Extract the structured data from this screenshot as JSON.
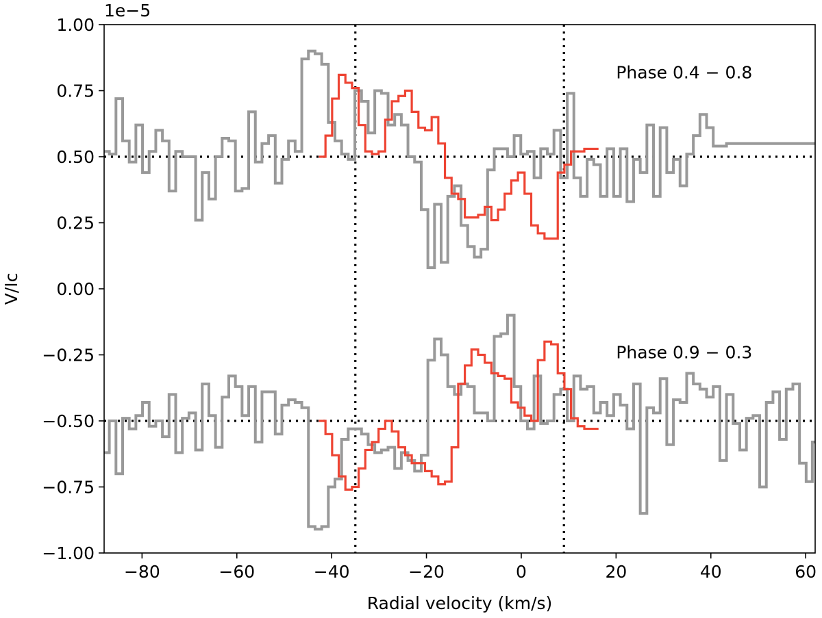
{
  "chart_data": {
    "type": "line",
    "step": true,
    "xlabel": "Radial velocity (km/s)",
    "ylabel": "V/Ic",
    "xlim": [
      -88,
      62
    ],
    "ylim": [
      -1e-05,
      1e-05
    ],
    "y_scale_label": "1e−5",
    "xticks": [
      -80,
      -60,
      -40,
      -20,
      0,
      20,
      40,
      60
    ],
    "xtick_labels": [
      "−80",
      "−60",
      "−40",
      "−20",
      "0",
      "20",
      "40",
      "60"
    ],
    "yticks": [
      -1.0,
      -0.75,
      -0.5,
      -0.25,
      0.0,
      0.25,
      0.5,
      0.75,
      1.0
    ],
    "ytick_labels": [
      "−1.00",
      "−0.75",
      "−0.50",
      "−0.25",
      "0.00",
      "0.25",
      "0.50",
      "0.75",
      "1.00"
    ],
    "y_multiplier": 1e-05,
    "reference_lines": {
      "vertical_x": [
        -35,
        9
      ],
      "horizontal_y": [
        0.5,
        -0.5
      ]
    },
    "annotations": [
      {
        "text": "Phase 0.4 − 0.8",
        "x": 20,
        "y": 0.82
      },
      {
        "text": "Phase 0.9 − 0.3",
        "x": 20,
        "y": -0.24
      }
    ],
    "series": [
      {
        "name": "upper-observed",
        "color": "#999999",
        "x": [
          -87.6,
          -86.2,
          -84.8,
          -83.4,
          -82.0,
          -80.6,
          -79.2,
          -77.8,
          -76.4,
          -75.0,
          -73.6,
          -72.2,
          -70.8,
          -69.4,
          -68.0,
          -66.6,
          -65.2,
          -63.8,
          -62.4,
          -61.0,
          -59.6,
          -58.2,
          -56.8,
          -55.4,
          -54.0,
          -52.6,
          -51.2,
          -49.8,
          -48.4,
          -47.0,
          -45.6,
          -44.2,
          -42.8,
          -41.4,
          -40.0,
          -38.6,
          -37.2,
          -35.8,
          -34.4,
          -33.0,
          -31.6,
          -30.2,
          -28.8,
          -27.4,
          -26.0,
          -24.6,
          -23.2,
          -21.8,
          -20.4,
          -19.0,
          -17.6,
          -16.2,
          -14.8,
          -13.4,
          -12.0,
          -10.6,
          -9.2,
          -7.8,
          -6.4,
          -5.0,
          -3.6,
          -2.2,
          -0.8,
          0.6,
          2.0,
          3.4,
          4.8,
          6.2,
          7.6,
          9.0,
          10.4,
          11.8,
          13.2,
          14.6,
          16.0,
          17.4,
          18.8,
          20.2,
          21.6,
          23.0,
          24.4,
          25.8,
          27.2,
          28.6,
          30.0,
          31.4,
          32.8,
          34.2,
          35.6,
          37.0,
          38.4,
          39.8,
          41.2,
          42.6,
          44.0,
          45.4,
          46.8,
          48.2,
          49.6,
          51.0,
          52.4,
          53.8,
          55.2,
          56.6,
          58.0,
          59.4,
          60.8,
          62.0
        ],
        "y": [
          0.52,
          0.51,
          0.72,
          0.56,
          0.48,
          0.62,
          0.44,
          0.52,
          0.6,
          0.56,
          0.37,
          0.52,
          0.5,
          0.5,
          0.26,
          0.44,
          0.34,
          0.5,
          0.57,
          0.56,
          0.37,
          0.38,
          0.67,
          0.48,
          0.55,
          0.58,
          0.4,
          0.49,
          0.56,
          0.52,
          0.87,
          0.9,
          0.89,
          0.85,
          0.63,
          0.56,
          0.51,
          0.49,
          0.75,
          0.71,
          0.59,
          0.75,
          0.74,
          0.62,
          0.66,
          0.62,
          0.5,
          0.48,
          0.3,
          0.08,
          0.32,
          0.1,
          0.35,
          0.39,
          0.24,
          0.16,
          0.12,
          0.15,
          0.45,
          0.53,
          0.53,
          0.5,
          0.58,
          0.51,
          0.52,
          0.42,
          0.53,
          0.51,
          0.6,
          0.42,
          0.74,
          0.42,
          0.35,
          0.49,
          0.47,
          0.35,
          0.53,
          0.35,
          0.53,
          0.33,
          0.49,
          0.44,
          0.62,
          0.35,
          0.61,
          0.44,
          0.49,
          0.39,
          0.51,
          0.58,
          0.66,
          0.61,
          0.54,
          0.54,
          0.55,
          0.55,
          0.55,
          0.55,
          0.55,
          0.55,
          0.55,
          0.55,
          0.55,
          0.55,
          0.55,
          0.55,
          0.55,
          0.55
        ]
      },
      {
        "name": "upper-model",
        "color": "#ee4433",
        "x": [
          -42.0,
          -40.6,
          -39.2,
          -37.8,
          -36.4,
          -35.0,
          -33.6,
          -32.2,
          -30.8,
          -29.4,
          -28.0,
          -26.6,
          -25.2,
          -23.8,
          -22.4,
          -21.0,
          -19.6,
          -18.2,
          -16.8,
          -15.4,
          -14.0,
          -12.6,
          -11.2,
          -9.8,
          -8.4,
          -7.0,
          -5.6,
          -4.2,
          -2.8,
          -1.4,
          0.0,
          1.4,
          2.8,
          4.2,
          5.6,
          7.0,
          8.4,
          9.8,
          11.2,
          12.6,
          14.0,
          15.4,
          16.0
        ],
        "y": [
          0.5,
          0.58,
          0.72,
          0.81,
          0.78,
          0.76,
          0.62,
          0.52,
          0.51,
          0.52,
          0.64,
          0.71,
          0.73,
          0.75,
          0.67,
          0.61,
          0.6,
          0.65,
          0.55,
          0.42,
          0.36,
          0.34,
          0.27,
          0.27,
          0.28,
          0.31,
          0.26,
          0.3,
          0.36,
          0.41,
          0.44,
          0.36,
          0.24,
          0.21,
          0.19,
          0.19,
          0.44,
          0.47,
          0.52,
          0.52,
          0.53,
          0.53,
          0.53
        ]
      },
      {
        "name": "lower-observed",
        "color": "#999999",
        "x": [
          -87.6,
          -86.2,
          -84.8,
          -83.4,
          -82.0,
          -80.6,
          -79.2,
          -77.8,
          -76.4,
          -75.0,
          -73.6,
          -72.2,
          -70.8,
          -69.4,
          -68.0,
          -66.6,
          -65.2,
          -63.8,
          -62.4,
          -61.0,
          -59.6,
          -58.2,
          -56.8,
          -55.4,
          -54.0,
          -52.6,
          -51.2,
          -49.8,
          -48.4,
          -47.0,
          -45.6,
          -44.2,
          -42.8,
          -41.4,
          -40.0,
          -38.6,
          -37.2,
          -35.8,
          -34.4,
          -33.0,
          -31.6,
          -30.2,
          -28.8,
          -27.4,
          -26.0,
          -24.6,
          -23.2,
          -21.8,
          -20.4,
          -19.0,
          -17.6,
          -16.2,
          -14.8,
          -13.4,
          -12.0,
          -10.6,
          -9.2,
          -7.8,
          -6.4,
          -5.0,
          -3.6,
          -2.2,
          -0.8,
          0.6,
          2.0,
          3.4,
          4.8,
          6.2,
          7.6,
          9.0,
          10.4,
          11.8,
          13.2,
          14.6,
          16.0,
          17.4,
          18.8,
          20.2,
          21.6,
          23.0,
          24.4,
          25.8,
          27.2,
          28.6,
          30.0,
          31.4,
          32.8,
          34.2,
          35.6,
          37.0,
          38.4,
          39.8,
          41.2,
          42.6,
          44.0,
          45.4,
          46.8,
          48.2,
          49.6,
          51.0,
          52.4,
          53.8,
          55.2,
          56.6,
          58.0,
          59.4,
          60.8,
          62.0
        ],
        "y": [
          -0.62,
          -0.5,
          -0.7,
          -0.49,
          -0.53,
          -0.48,
          -0.43,
          -0.52,
          -0.5,
          -0.56,
          -0.4,
          -0.62,
          -0.49,
          -0.47,
          -0.61,
          -0.36,
          -0.48,
          -0.6,
          -0.41,
          -0.33,
          -0.37,
          -0.48,
          -0.37,
          -0.58,
          -0.39,
          -0.39,
          -0.55,
          -0.44,
          -0.42,
          -0.43,
          -0.45,
          -0.9,
          -0.91,
          -0.9,
          -0.75,
          -0.72,
          -0.57,
          -0.53,
          -0.53,
          -0.55,
          -0.59,
          -0.62,
          -0.61,
          -0.6,
          -0.68,
          -0.62,
          -0.65,
          -0.69,
          -0.63,
          -0.27,
          -0.19,
          -0.25,
          -0.37,
          -0.4,
          -0.36,
          -0.37,
          -0.47,
          -0.47,
          -0.5,
          -0.18,
          -0.17,
          -0.1,
          -0.37,
          -0.5,
          -0.53,
          -0.33,
          -0.51,
          -0.5,
          -0.4,
          -0.38,
          -0.5,
          -0.33,
          -0.38,
          -0.37,
          -0.47,
          -0.43,
          -0.48,
          -0.4,
          -0.44,
          -0.53,
          -0.36,
          -0.85,
          -0.45,
          -0.47,
          -0.34,
          -0.59,
          -0.42,
          -0.43,
          -0.32,
          -0.36,
          -0.38,
          -0.41,
          -0.37,
          -0.65,
          -0.4,
          -0.51,
          -0.61,
          -0.49,
          -0.48,
          -0.75,
          -0.43,
          -0.39,
          -0.57,
          -0.38,
          -0.36,
          -0.66,
          -0.73,
          -0.58
        ]
      },
      {
        "name": "lower-model",
        "color": "#ee4433",
        "x": [
          -42.0,
          -40.6,
          -39.2,
          -37.8,
          -36.4,
          -35.0,
          -33.6,
          -32.2,
          -30.8,
          -29.4,
          -28.0,
          -26.6,
          -25.2,
          -23.8,
          -22.4,
          -21.0,
          -19.6,
          -18.2,
          -16.8,
          -15.4,
          -14.0,
          -12.6,
          -11.2,
          -9.8,
          -8.4,
          -7.0,
          -5.6,
          -4.2,
          -2.8,
          -1.4,
          0.0,
          1.4,
          2.8,
          4.2,
          5.6,
          7.0,
          8.4,
          9.8,
          11.2,
          12.6,
          14.0,
          15.4,
          16.0
        ],
        "y": [
          -0.5,
          -0.55,
          -0.63,
          -0.71,
          -0.76,
          -0.75,
          -0.68,
          -0.61,
          -0.58,
          -0.53,
          -0.5,
          -0.54,
          -0.6,
          -0.63,
          -0.66,
          -0.66,
          -0.69,
          -0.71,
          -0.74,
          -0.73,
          -0.6,
          -0.36,
          -0.29,
          -0.23,
          -0.25,
          -0.28,
          -0.32,
          -0.33,
          -0.34,
          -0.43,
          -0.45,
          -0.48,
          -0.5,
          -0.27,
          -0.2,
          -0.21,
          -0.32,
          -0.38,
          -0.49,
          -0.52,
          -0.53,
          -0.53,
          -0.53
        ]
      }
    ]
  }
}
